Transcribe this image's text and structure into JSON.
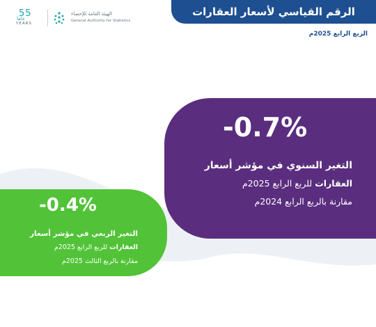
{
  "header": {
    "title": "الرقم القياسي لأسعار العقارات",
    "period": "الربع الرابع 2025م"
  },
  "logos": {
    "anniversary_number": "55",
    "anniversary_word": "عاما",
    "anniversary_years": "YEARS",
    "gastat_arabic": "الهيئة العامة للإحصاء",
    "gastat_english": "General Authority for Statistics"
  },
  "annual": {
    "value": "-0.7%",
    "line1": "التغير السنوي في مؤشر أسعار",
    "line2_bold": "العقارات",
    "line2_rest": " للربع الرابع 2025م",
    "line3": "مقارنة بالربع الرابع 2024م"
  },
  "quarterly": {
    "value": "-0.4%",
    "line1": "التغير الربعي في مؤشر أسعار",
    "line2_bold": "العقارات",
    "line2_rest": " للربع الرابع 2025م",
    "line3": "مقارنة بالربع الثالث 2025م"
  },
  "colors": {
    "banner": "#1d4f91",
    "purple_card": "#5a2d7e",
    "green_card": "#52c338",
    "wave": "#edf1f6",
    "teal": "#1aa3a8"
  }
}
